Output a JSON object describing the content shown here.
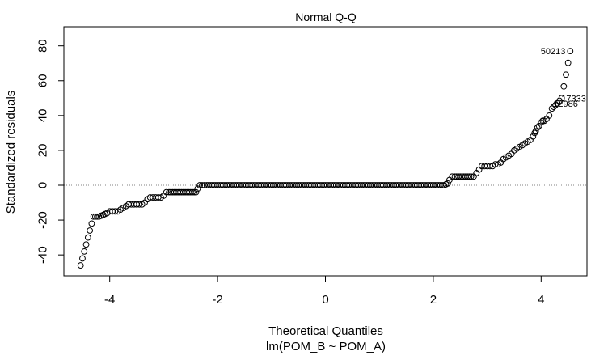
{
  "chart_data": {
    "type": "scatter",
    "title": "Normal Q-Q",
    "xlabel": "Theoretical Quantiles",
    "ylabel": "Standardized residuals",
    "subtitle": "lm(POM_B ~ POM_A)",
    "xlim": [
      -4.85,
      4.85
    ],
    "ylim": [
      -52,
      91
    ],
    "x_ticks": [
      -4,
      -2,
      0,
      2,
      4
    ],
    "x_tick_labels": [
      "-4",
      "-2",
      "0",
      "2",
      "4"
    ],
    "y_ticks": [
      -40,
      -20,
      0,
      20,
      40,
      60,
      80
    ],
    "y_tick_labels": [
      "-40",
      "-20",
      "0",
      "20",
      "40",
      "60",
      "80"
    ],
    "reference_line": {
      "y": 0,
      "style": "dotted",
      "color": "#808080"
    },
    "grid": false,
    "point_style": "open-circle",
    "labeled_points": [
      {
        "label": "50213",
        "x": 4.54,
        "y": 77
      },
      {
        "label": "17333",
        "x": 4.3,
        "y": 50
      },
      {
        "label": "12986",
        "x": 4.15,
        "y": 47
      }
    ],
    "series": [
      {
        "points": [
          [
            -4.54,
            -46
          ],
          [
            -4.3,
            -18
          ],
          [
            -4.2,
            -18
          ],
          [
            -4.12,
            -17
          ],
          [
            -4.05,
            -16
          ],
          [
            -4.0,
            -15
          ],
          [
            -3.95,
            -15
          ],
          [
            -3.9,
            -15
          ],
          [
            -3.85,
            -15
          ],
          [
            -3.8,
            -14
          ],
          [
            -3.75,
            -13
          ],
          [
            -3.7,
            -12
          ],
          [
            -3.65,
            -11
          ],
          [
            -3.6,
            -11
          ],
          [
            -3.55,
            -11
          ],
          [
            -3.5,
            -11
          ],
          [
            -3.45,
            -11
          ],
          [
            -3.4,
            -11
          ],
          [
            -3.35,
            -10
          ],
          [
            -3.3,
            -8
          ],
          [
            -3.25,
            -7
          ],
          [
            -3.2,
            -7
          ],
          [
            -3.15,
            -7
          ],
          [
            -3.1,
            -7
          ],
          [
            -3.05,
            -7
          ],
          [
            -3.0,
            -6
          ],
          [
            -2.95,
            -4
          ],
          [
            -2.9,
            -4
          ],
          [
            -2.8,
            -4
          ],
          [
            -2.7,
            -4
          ],
          [
            -2.6,
            -4
          ],
          [
            -2.5,
            -4
          ],
          [
            -2.4,
            -4
          ],
          [
            -2.37,
            -2
          ],
          [
            -2.33,
            0
          ],
          [
            -2.2,
            0
          ],
          [
            -2.0,
            0
          ],
          [
            -1.5,
            0
          ],
          [
            -1.0,
            0
          ],
          [
            -0.5,
            0
          ],
          [
            0.0,
            0
          ],
          [
            0.5,
            0
          ],
          [
            1.0,
            0
          ],
          [
            1.5,
            0
          ],
          [
            2.0,
            0
          ],
          [
            2.2,
            0
          ],
          [
            2.27,
            1
          ],
          [
            2.3,
            3
          ],
          [
            2.35,
            5
          ],
          [
            2.4,
            5
          ],
          [
            2.5,
            5
          ],
          [
            2.6,
            5
          ],
          [
            2.7,
            5
          ],
          [
            2.75,
            5
          ],
          [
            2.8,
            7
          ],
          [
            2.85,
            9
          ],
          [
            2.9,
            11
          ],
          [
            2.95,
            11
          ],
          [
            3.0,
            11
          ],
          [
            3.05,
            11
          ],
          [
            3.1,
            11
          ],
          [
            3.15,
            12
          ],
          [
            3.2,
            12
          ],
          [
            3.25,
            13
          ],
          [
            3.3,
            15
          ],
          [
            3.35,
            16
          ],
          [
            3.4,
            17
          ],
          [
            3.45,
            18
          ],
          [
            3.5,
            20
          ],
          [
            3.55,
            21
          ],
          [
            3.6,
            22
          ],
          [
            3.65,
            23
          ],
          [
            3.7,
            24
          ],
          [
            3.75,
            25
          ],
          [
            3.8,
            26
          ],
          [
            3.85,
            28
          ],
          [
            3.88,
            30
          ],
          [
            3.9,
            31
          ],
          [
            3.93,
            33
          ],
          [
            3.96,
            34
          ],
          [
            4.0,
            36
          ],
          [
            4.03,
            37
          ],
          [
            4.06,
            37
          ],
          [
            4.1,
            38
          ],
          [
            4.15,
            40
          ],
          [
            4.2,
            44
          ],
          [
            4.3,
            47
          ],
          [
            4.38,
            50
          ],
          [
            4.54,
            77
          ]
        ]
      }
    ]
  }
}
